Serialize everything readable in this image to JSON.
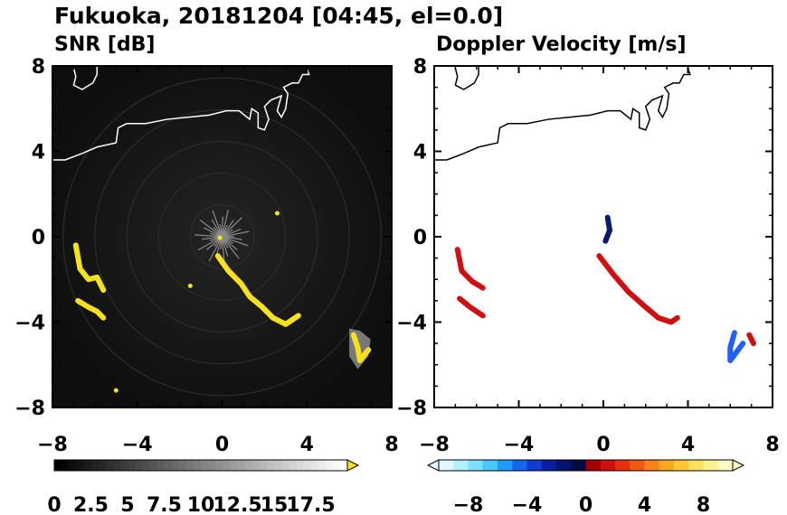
{
  "title": "Fukuoka, 20181204 [04:45, el=0.0]",
  "colors": {
    "coast": "#ffffff",
    "coast_right": "#000000",
    "echo_snr": "#f5e11e",
    "echo_grey": "#cfcfcf",
    "panel_dark": "#141414"
  },
  "chart_data": [
    {
      "type": "heatmap",
      "title": "SNR [dB]",
      "xlim": [
        -8,
        8
      ],
      "ylim": [
        -8,
        8
      ],
      "xticks": [
        -8,
        -4,
        0,
        4,
        8
      ],
      "yticks": [
        -8,
        -4,
        0,
        4,
        8
      ],
      "xtick_labels": [
        "−8",
        "−4",
        "0",
        "4",
        "8"
      ],
      "ytick_labels": [
        "−8",
        "−4",
        "0",
        "4",
        "8"
      ],
      "colorbar": {
        "labels": [
          "0",
          "2.5",
          "5",
          "7.5",
          "10",
          "12.5",
          "15",
          "17.5"
        ],
        "range": [
          0,
          20
        ],
        "extend": "max",
        "colormap": "black-to-white",
        "extend_color": "#f5e11e"
      },
      "echoes": [
        {
          "name": "west-cluster-upper",
          "points": [
            [
              -6.9,
              -0.4
            ],
            [
              -6.7,
              -1.5
            ],
            [
              -6.3,
              -2.0
            ],
            [
              -5.9,
              -1.9
            ],
            [
              -5.6,
              -2.5
            ]
          ],
          "color": "#f5e11e"
        },
        {
          "name": "west-cluster-lower",
          "points": [
            [
              -6.8,
              -3.0
            ],
            [
              -6.3,
              -3.3
            ],
            [
              -5.9,
              -3.5
            ],
            [
              -5.6,
              -3.8
            ]
          ],
          "color": "#f5e11e"
        },
        {
          "name": "central-line",
          "points": [
            [
              -0.2,
              -0.9
            ],
            [
              0.3,
              -1.6
            ],
            [
              0.9,
              -2.2
            ],
            [
              1.3,
              -2.8
            ],
            [
              1.9,
              -3.3
            ],
            [
              2.4,
              -3.8
            ],
            [
              3.0,
              -4.1
            ],
            [
              3.6,
              -3.7
            ]
          ],
          "color": "#f5e11e"
        },
        {
          "name": "east-cluster",
          "points": [
            [
              6.2,
              -4.6
            ],
            [
              6.4,
              -5.2
            ],
            [
              6.5,
              -5.8
            ],
            [
              6.9,
              -5.3
            ]
          ],
          "color": "#f5e11e"
        },
        {
          "name": "south-speck",
          "points": [
            [
              -5.0,
              -7.2
            ]
          ],
          "color": "#f5e11e"
        },
        {
          "name": "north-speck",
          "points": [
            [
              2.6,
              1.1
            ]
          ],
          "color": "#f5e11e"
        },
        {
          "name": "center-speck",
          "points": [
            [
              -0.1,
              -0.05
            ]
          ],
          "color": "#f5e11e"
        },
        {
          "name": "sw-speck",
          "points": [
            [
              -1.5,
              -2.3
            ]
          ],
          "color": "#f5e11e"
        }
      ]
    },
    {
      "type": "heatmap",
      "title": "Doppler Velocity [m/s]",
      "xlim": [
        -8,
        8
      ],
      "ylim": [
        -8,
        8
      ],
      "xticks": [
        -8,
        -4,
        0,
        4,
        8
      ],
      "yticks": [
        -8,
        -4,
        0,
        4,
        8
      ],
      "xtick_labels": [
        "−8",
        "−4",
        "0",
        "4",
        "8"
      ],
      "ytick_labels": [
        "−8",
        "−4",
        "0",
        "4",
        "8"
      ],
      "colorbar": {
        "labels": [
          "−8",
          "−4",
          "0",
          "4",
          "8"
        ],
        "ticks": [
          -8,
          -4,
          0,
          4,
          8
        ],
        "range": [
          -10,
          10
        ],
        "extend": "both",
        "colormap": "cyan-blue-navy | red-orange-yellow"
      },
      "echoes": [
        {
          "name": "west-red",
          "points": [
            [
              -6.9,
              -0.6
            ],
            [
              -6.7,
              -1.6
            ],
            [
              -6.2,
              -2.1
            ],
            [
              -5.7,
              -2.4
            ]
          ],
          "color": "#d01010"
        },
        {
          "name": "west-red-lower",
          "points": [
            [
              -6.8,
              -2.9
            ],
            [
              -6.3,
              -3.3
            ],
            [
              -5.7,
              -3.7
            ]
          ],
          "color": "#d01010"
        },
        {
          "name": "central-red",
          "points": [
            [
              -0.2,
              -0.9
            ],
            [
              0.5,
              -1.8
            ],
            [
              1.2,
              -2.6
            ],
            [
              2.0,
              -3.3
            ],
            [
              2.6,
              -3.8
            ],
            [
              3.2,
              -4.0
            ],
            [
              3.5,
              -3.8
            ]
          ],
          "color": "#d01010"
        },
        {
          "name": "center-navy",
          "points": [
            [
              0.2,
              0.9
            ],
            [
              0.3,
              0.3
            ],
            [
              0.1,
              -0.2
            ]
          ],
          "color": "#0a1a6e"
        },
        {
          "name": "east-blue",
          "points": [
            [
              6.2,
              -4.5
            ],
            [
              6.0,
              -5.2
            ],
            [
              6.0,
              -5.8
            ],
            [
              6.6,
              -5.0
            ]
          ],
          "color": "#2060ff"
        },
        {
          "name": "east-red",
          "points": [
            [
              6.9,
              -4.6
            ],
            [
              7.1,
              -5.0
            ]
          ],
          "color": "#d01010"
        }
      ]
    }
  ]
}
